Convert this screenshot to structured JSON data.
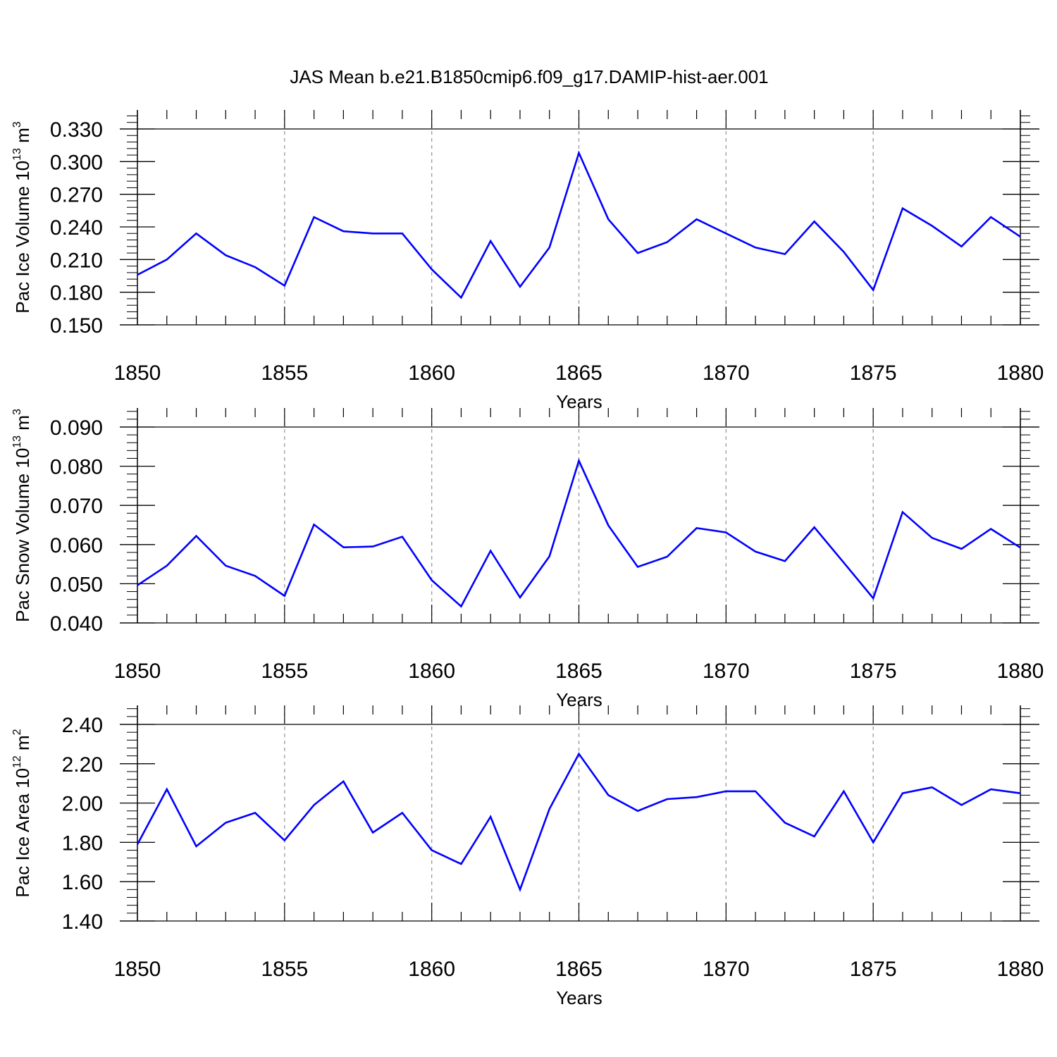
{
  "figure": {
    "title": "JAS Mean b.e21.B1850cmip6.f09_g17.DAMIP-hist-aer.001",
    "line_color": "#0000ff",
    "grid_color": "#999999"
  },
  "chart_data": [
    {
      "type": "line",
      "title": "JAS Mean b.e21.B1850cmip6.f09_g17.DAMIP-hist-aer.001",
      "xlabel": "Years",
      "ylabel": "Pac Ice Volume 10",
      "ylabel_exp": "13",
      "ylabel_unit": " m",
      "ylabel_unit_exp": "3",
      "xlim": [
        1850,
        1880
      ],
      "ylim": [
        0.15,
        0.33
      ],
      "xticks": [
        "1850",
        "1855",
        "1860",
        "1865",
        "1870",
        "1875",
        "1880"
      ],
      "yticks": [
        "0.150",
        "0.180",
        "0.210",
        "0.240",
        "0.270",
        "0.300",
        "0.330"
      ],
      "grid": "vertical dashed at major x ticks",
      "x": [
        1850,
        1851,
        1852,
        1853,
        1854,
        1855,
        1856,
        1857,
        1858,
        1859,
        1860,
        1861,
        1862,
        1863,
        1864,
        1865,
        1866,
        1867,
        1868,
        1869,
        1870,
        1871,
        1872,
        1873,
        1874,
        1875,
        1876,
        1877,
        1878,
        1879,
        1880
      ],
      "values": [
        0.196,
        0.21,
        0.234,
        0.214,
        0.203,
        0.186,
        0.249,
        0.236,
        0.234,
        0.234,
        0.201,
        0.175,
        0.227,
        0.185,
        0.221,
        0.308,
        0.247,
        0.216,
        0.226,
        0.247,
        0.234,
        0.221,
        0.215,
        0.245,
        0.217,
        0.182,
        0.257,
        0.241,
        0.222,
        0.249,
        0.231
      ]
    },
    {
      "type": "line",
      "xlabel": "Years",
      "ylabel": "Pac Snow Volume 10",
      "ylabel_exp": "13",
      "ylabel_unit": " m",
      "ylabel_unit_exp": "3",
      "xlim": [
        1850,
        1880
      ],
      "ylim": [
        0.04,
        0.09
      ],
      "xticks": [
        "1850",
        "1855",
        "1860",
        "1865",
        "1870",
        "1875",
        "1880"
      ],
      "yticks": [
        "0.040",
        "0.050",
        "0.060",
        "0.070",
        "0.080",
        "0.090"
      ],
      "grid": "vertical dashed at major x ticks",
      "x": [
        1850,
        1851,
        1852,
        1853,
        1854,
        1855,
        1856,
        1857,
        1858,
        1859,
        1860,
        1861,
        1862,
        1863,
        1864,
        1865,
        1866,
        1867,
        1868,
        1869,
        1870,
        1871,
        1872,
        1873,
        1874,
        1875,
        1876,
        1877,
        1878,
        1879,
        1880
      ],
      "values": [
        0.0496,
        0.0546,
        0.0622,
        0.0546,
        0.052,
        0.0469,
        0.0651,
        0.0593,
        0.0595,
        0.062,
        0.0509,
        0.0442,
        0.0584,
        0.0465,
        0.057,
        0.0814,
        0.0649,
        0.0543,
        0.0569,
        0.0642,
        0.0631,
        0.0582,
        0.0558,
        0.0644,
        0.0554,
        0.0463,
        0.0683,
        0.0617,
        0.0589,
        0.064,
        0.0592
      ]
    },
    {
      "type": "line",
      "xlabel": "Years",
      "ylabel": "Pac Ice Area 10",
      "ylabel_exp": "12",
      "ylabel_unit": " m",
      "ylabel_unit_exp": "2",
      "xlim": [
        1850,
        1880
      ],
      "ylim": [
        1.4,
        2.4
      ],
      "xticks": [
        "1850",
        "1855",
        "1860",
        "1865",
        "1870",
        "1875",
        "1880"
      ],
      "yticks": [
        "1.40",
        "1.60",
        "1.80",
        "2.00",
        "2.20",
        "2.40"
      ],
      "grid": "vertical dashed at major x ticks",
      "x": [
        1850,
        1851,
        1852,
        1853,
        1854,
        1855,
        1856,
        1857,
        1858,
        1859,
        1860,
        1861,
        1862,
        1863,
        1864,
        1865,
        1866,
        1867,
        1868,
        1869,
        1870,
        1871,
        1872,
        1873,
        1874,
        1875,
        1876,
        1877,
        1878,
        1879,
        1880
      ],
      "values": [
        1.79,
        2.07,
        1.78,
        1.9,
        1.95,
        1.81,
        1.99,
        2.11,
        1.85,
        1.95,
        1.76,
        1.69,
        1.93,
        1.56,
        1.97,
        2.25,
        2.04,
        1.96,
        2.02,
        2.03,
        2.06,
        2.06,
        1.9,
        1.83,
        2.06,
        1.8,
        2.05,
        2.08,
        1.99,
        2.07,
        2.05
      ]
    }
  ]
}
